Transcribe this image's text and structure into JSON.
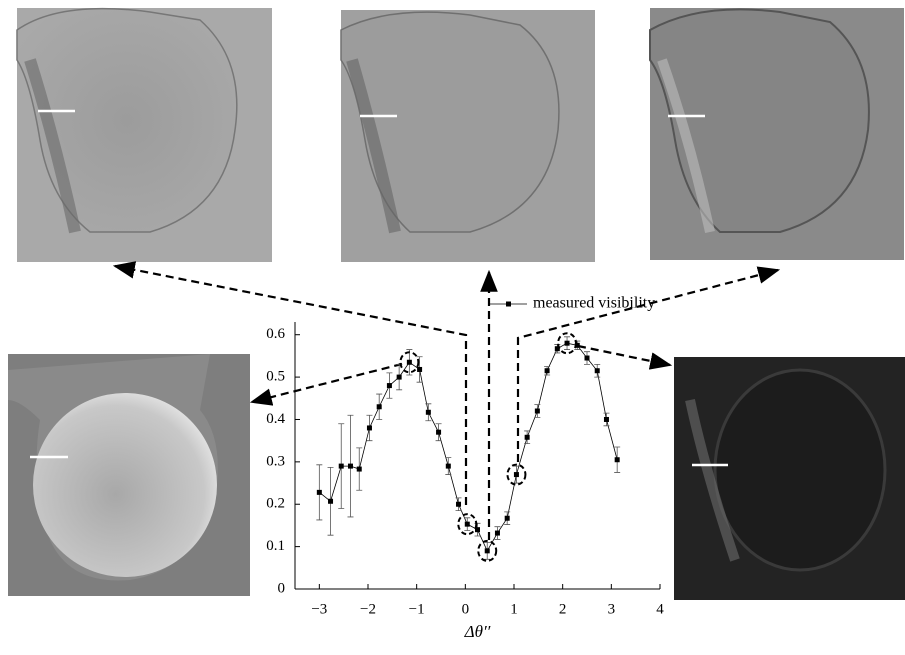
{
  "chart_data": {
    "type": "line",
    "x_label": "Δθ′′",
    "xlim": [
      -3.5,
      4
    ],
    "xticks": [
      -3,
      -2,
      -1,
      0,
      1,
      2,
      3,
      4
    ],
    "ylim": [
      0,
      0.63
    ],
    "yticks": [
      0,
      0.1,
      0.2,
      0.3,
      0.4,
      0.5,
      0.6
    ],
    "grid": false,
    "legend": "top-right",
    "x": [
      -3.0,
      -2.77,
      -2.55,
      -2.36,
      -2.18,
      -1.97,
      -1.77,
      -1.56,
      -1.36,
      -1.15,
      -0.94,
      -0.76,
      -0.55,
      -0.35,
      -0.14,
      0.04,
      0.25,
      0.45,
      0.66,
      0.86,
      1.05,
      1.27,
      1.48,
      1.68,
      1.89,
      2.09,
      2.3,
      2.5,
      2.71,
      2.9,
      3.12
    ],
    "series": [
      {
        "name": "measured visibility",
        "color": "#000000",
        "values": [
          0.228,
          0.207,
          0.29,
          0.29,
          0.283,
          0.38,
          0.43,
          0.48,
          0.5,
          0.535,
          0.518,
          0.417,
          0.37,
          0.29,
          0.2,
          0.153,
          0.14,
          0.09,
          0.132,
          0.167,
          0.27,
          0.358,
          0.42,
          0.515,
          0.567,
          0.58,
          0.575,
          0.545,
          0.515,
          0.4,
          0.305
        ],
        "errors": [
          0.065,
          0.08,
          0.1,
          0.12,
          0.05,
          0.03,
          0.03,
          0.03,
          0.03,
          0.03,
          0.03,
          0.02,
          0.02,
          0.02,
          0.015,
          0.015,
          0.015,
          0.02,
          0.015,
          0.015,
          0.02,
          0.015,
          0.015,
          0.01,
          0.01,
          0.015,
          0.01,
          0.015,
          0.015,
          0.015,
          0.03
        ]
      }
    ]
  }
}
